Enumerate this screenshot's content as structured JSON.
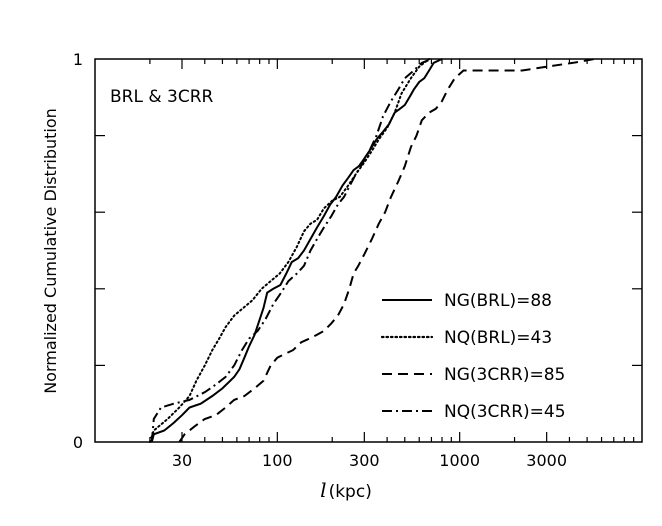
{
  "chart_data": {
    "type": "line",
    "title": "",
    "annotation": "BRL & 3CRR",
    "xlabel_symbol": "l",
    "xlabel_unit": "(kpc)",
    "ylabel": "Normalized Cumulative Distribution",
    "x_scale": "log",
    "xlim": [
      10,
      10000
    ],
    "ylim": [
      0,
      1
    ],
    "x_ticks": [
      {
        "value": 30,
        "label": "30"
      },
      {
        "value": 100,
        "label": "100"
      },
      {
        "value": 300,
        "label": "300"
      },
      {
        "value": 1000,
        "label": "1000"
      },
      {
        "value": 3000,
        "label": "3000"
      }
    ],
    "y_ticks": [
      {
        "value": 0,
        "label": "0"
      },
      {
        "value": 1,
        "label": "1"
      }
    ],
    "legend_position": "bottom-right",
    "series": [
      {
        "name": "NG(BRL)=88",
        "style": "solid",
        "points": [
          [
            20.5,
            0
          ],
          [
            21,
            0.02
          ],
          [
            24,
            0.03
          ],
          [
            27,
            0.05
          ],
          [
            30,
            0.07
          ],
          [
            33,
            0.09
          ],
          [
            38,
            0.1
          ],
          [
            44,
            0.12
          ],
          [
            50,
            0.14
          ],
          [
            58,
            0.17
          ],
          [
            62,
            0.19
          ],
          [
            66,
            0.22
          ],
          [
            70,
            0.25
          ],
          [
            75,
            0.28
          ],
          [
            80,
            0.32
          ],
          [
            84,
            0.35
          ],
          [
            88,
            0.39
          ],
          [
            95,
            0.4
          ],
          [
            104,
            0.41
          ],
          [
            112,
            0.44
          ],
          [
            120,
            0.47
          ],
          [
            130,
            0.48
          ],
          [
            140,
            0.5
          ],
          [
            152,
            0.53
          ],
          [
            165,
            0.56
          ],
          [
            180,
            0.59
          ],
          [
            195,
            0.62
          ],
          [
            210,
            0.64
          ],
          [
            228,
            0.67
          ],
          [
            245,
            0.69
          ],
          [
            262,
            0.71
          ],
          [
            280,
            0.72
          ],
          [
            300,
            0.74
          ],
          [
            320,
            0.76
          ],
          [
            350,
            0.79
          ],
          [
            380,
            0.81
          ],
          [
            410,
            0.83
          ],
          [
            440,
            0.86
          ],
          [
            470,
            0.87
          ],
          [
            500,
            0.88
          ],
          [
            530,
            0.9
          ],
          [
            560,
            0.92
          ],
          [
            600,
            0.94
          ],
          [
            640,
            0.95
          ],
          [
            680,
            0.97
          ],
          [
            720,
            0.99
          ],
          [
            800,
            1.0
          ]
        ]
      },
      {
        "name": "NQ(BRL)=43",
        "style": "dotted",
        "points": [
          [
            20,
            0
          ],
          [
            21,
            0.03
          ],
          [
            25,
            0.06
          ],
          [
            29,
            0.09
          ],
          [
            33,
            0.12
          ],
          [
            36,
            0.16
          ],
          [
            40,
            0.2
          ],
          [
            44,
            0.24
          ],
          [
            48,
            0.27
          ],
          [
            52,
            0.3
          ],
          [
            58,
            0.33
          ],
          [
            65,
            0.35
          ],
          [
            73,
            0.37
          ],
          [
            82,
            0.4
          ],
          [
            92,
            0.42
          ],
          [
            103,
            0.44
          ],
          [
            115,
            0.47
          ],
          [
            128,
            0.51
          ],
          [
            140,
            0.55
          ],
          [
            152,
            0.57
          ],
          [
            165,
            0.58
          ],
          [
            180,
            0.61
          ],
          [
            200,
            0.63
          ],
          [
            220,
            0.64
          ],
          [
            245,
            0.67
          ],
          [
            270,
            0.7
          ],
          [
            300,
            0.73
          ],
          [
            330,
            0.76
          ],
          [
            360,
            0.79
          ],
          [
            400,
            0.82
          ],
          [
            440,
            0.86
          ],
          [
            480,
            0.91
          ],
          [
            540,
            0.95
          ],
          [
            600,
            0.98
          ],
          [
            680,
            1.0
          ]
        ]
      },
      {
        "name": "NG(3CRR)=85",
        "style": "dashed",
        "points": [
          [
            29,
            0
          ],
          [
            31,
            0.02
          ],
          [
            35,
            0.04
          ],
          [
            40,
            0.06
          ],
          [
            46,
            0.07
          ],
          [
            52,
            0.09
          ],
          [
            58,
            0.11
          ],
          [
            66,
            0.12
          ],
          [
            75,
            0.14
          ],
          [
            84,
            0.16
          ],
          [
            92,
            0.2
          ],
          [
            100,
            0.22
          ],
          [
            110,
            0.23
          ],
          [
            122,
            0.24
          ],
          [
            135,
            0.26
          ],
          [
            150,
            0.27
          ],
          [
            165,
            0.28
          ],
          [
            180,
            0.29
          ],
          [
            198,
            0.31
          ],
          [
            215,
            0.33
          ],
          [
            232,
            0.36
          ],
          [
            248,
            0.4
          ],
          [
            262,
            0.44
          ],
          [
            278,
            0.46
          ],
          [
            300,
            0.49
          ],
          [
            330,
            0.53
          ],
          [
            360,
            0.57
          ],
          [
            390,
            0.6
          ],
          [
            420,
            0.64
          ],
          [
            460,
            0.68
          ],
          [
            500,
            0.72
          ],
          [
            540,
            0.77
          ],
          [
            580,
            0.8
          ],
          [
            620,
            0.84
          ],
          [
            680,
            0.86
          ],
          [
            740,
            0.87
          ],
          [
            800,
            0.89
          ],
          [
            860,
            0.92
          ],
          [
            940,
            0.95
          ],
          [
            1050,
            0.97
          ],
          [
            1200,
            0.97
          ],
          [
            1600,
            0.97
          ],
          [
            2200,
            0.97
          ],
          [
            3000,
            0.98
          ],
          [
            4200,
            0.99
          ],
          [
            5500,
            1.0
          ]
        ]
      },
      {
        "name": "NQ(3CRR)=45",
        "style": "dashdot",
        "points": [
          [
            20.5,
            0
          ],
          [
            21,
            0.06
          ],
          [
            23,
            0.09
          ],
          [
            27,
            0.1
          ],
          [
            33,
            0.11
          ],
          [
            40,
            0.13
          ],
          [
            46,
            0.15
          ],
          [
            52,
            0.17
          ],
          [
            58,
            0.2
          ],
          [
            64,
            0.24
          ],
          [
            70,
            0.27
          ],
          [
            78,
            0.29
          ],
          [
            86,
            0.32
          ],
          [
            95,
            0.36
          ],
          [
            105,
            0.39
          ],
          [
            115,
            0.42
          ],
          [
            128,
            0.44
          ],
          [
            140,
            0.46
          ],
          [
            152,
            0.5
          ],
          [
            165,
            0.53
          ],
          [
            180,
            0.56
          ],
          [
            198,
            0.59
          ],
          [
            215,
            0.62
          ],
          [
            232,
            0.64
          ],
          [
            250,
            0.67
          ],
          [
            270,
            0.7
          ],
          [
            295,
            0.73
          ],
          [
            320,
            0.76
          ],
          [
            350,
            0.8
          ],
          [
            380,
            0.85
          ],
          [
            420,
            0.89
          ],
          [
            460,
            0.92
          ],
          [
            500,
            0.95
          ],
          [
            560,
            0.97
          ],
          [
            620,
            0.99
          ],
          [
            700,
            1.0
          ]
        ]
      }
    ]
  }
}
